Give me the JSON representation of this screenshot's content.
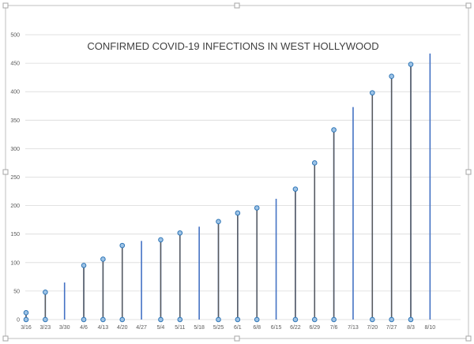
{
  "chart_data": {
    "type": "bar",
    "title": "CONFIRMED COVID-19 INFECTIONS IN WEST HOLLYWOOD",
    "xlabel": "",
    "ylabel": "",
    "ylim": [
      0,
      500
    ],
    "grid": true,
    "legend": "none",
    "x_ticks": [
      "3/16",
      "3/23",
      "3/30",
      "4/6",
      "4/13",
      "4/20",
      "4/27",
      "5/4",
      "5/11",
      "5/18",
      "5/25",
      "6/1",
      "6/8",
      "6/15",
      "6/22",
      "6/29",
      "7/6",
      "7/13",
      "7/20",
      "7/27",
      "8/3",
      "8/10"
    ],
    "y_ticks": [
      0,
      50,
      100,
      150,
      200,
      250,
      300,
      350,
      400,
      450,
      500
    ],
    "categories": [
      "3/16",
      "3/23",
      "3/30",
      "4/6",
      "4/13",
      "4/20",
      "4/27",
      "5/4",
      "5/11",
      "5/18",
      "5/25",
      "6/1",
      "6/8",
      "6/15",
      "6/22",
      "6/29",
      "7/6",
      "7/13",
      "7/20",
      "7/27",
      "8/3",
      "8/10"
    ],
    "values": [
      12,
      48,
      65,
      95,
      106,
      130,
      138,
      140,
      152,
      163,
      172,
      187,
      196,
      212,
      229,
      275,
      333,
      373,
      398,
      427,
      448,
      467
    ],
    "highlight_points": [
      {
        "x": "3/16",
        "y": 12
      },
      {
        "x": "3/23",
        "y": 48
      },
      {
        "x": "4/6",
        "y": 95
      },
      {
        "x": "4/13",
        "y": 106
      },
      {
        "x": "4/20",
        "y": 130
      },
      {
        "x": "5/4",
        "y": 140
      },
      {
        "x": "5/11",
        "y": 152
      },
      {
        "x": "5/25",
        "y": 172
      },
      {
        "x": "6/1",
        "y": 187
      },
      {
        "x": "6/8",
        "y": 196
      },
      {
        "x": "6/22",
        "y": 229
      },
      {
        "x": "6/29",
        "y": 275
      },
      {
        "x": "7/6",
        "y": 333
      },
      {
        "x": "7/20",
        "y": 398
      },
      {
        "x": "7/27",
        "y": 427
      },
      {
        "x": "8/3",
        "y": 448
      }
    ],
    "colors": {
      "bar": "#4472c4",
      "highlight_line": "#595959",
      "marker_fill": "#9dc3e6",
      "marker_stroke": "#2e75b6",
      "grid": "#d9d9d9",
      "frame": "#bfbfbf"
    }
  }
}
